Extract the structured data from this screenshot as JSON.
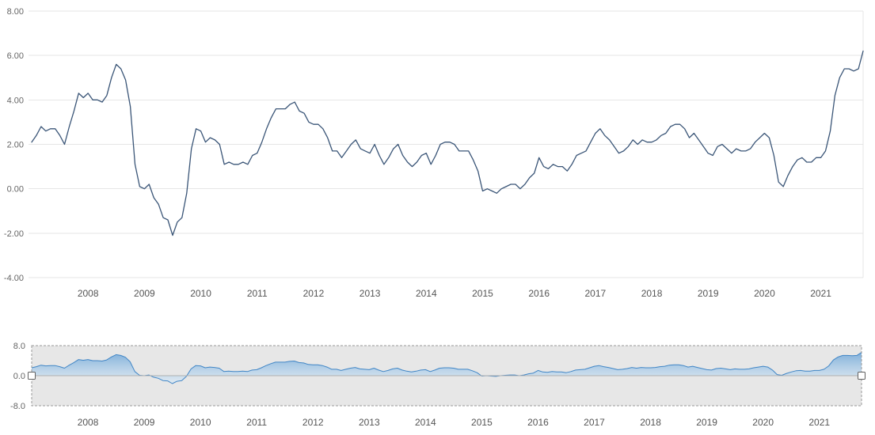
{
  "chart_data": {
    "type": "line",
    "title": "",
    "start_year": 2007,
    "frequency": "monthly",
    "x_tick_labels": [
      "2008",
      "2009",
      "2010",
      "2011",
      "2012",
      "2013",
      "2014",
      "2015",
      "2016",
      "2017",
      "2018",
      "2019",
      "2020",
      "2021"
    ],
    "main_y_ticks": [
      "8.00",
      "6.00",
      "4.00",
      "2.00",
      "0.00",
      "-2.00",
      "-4.00"
    ],
    "main_ylim": [
      -4,
      8
    ],
    "navigator_y_ticks": [
      "8.0",
      "0.0",
      "-8.0"
    ],
    "navigator_ylim": [
      -8,
      8
    ],
    "grid": true,
    "legend": "none",
    "series": [
      {
        "name": "value",
        "values": [
          2.1,
          2.4,
          2.8,
          2.6,
          2.7,
          2.7,
          2.4,
          2.0,
          2.8,
          3.5,
          4.3,
          4.1,
          4.3,
          4.0,
          4.0,
          3.9,
          4.2,
          5.0,
          5.6,
          5.4,
          4.9,
          3.7,
          1.1,
          0.1,
          0.0,
          0.2,
          -0.4,
          -0.7,
          -1.3,
          -1.4,
          -2.1,
          -1.5,
          -1.3,
          -0.2,
          1.8,
          2.7,
          2.6,
          2.1,
          2.3,
          2.2,
          2.0,
          1.1,
          1.2,
          1.1,
          1.1,
          1.2,
          1.1,
          1.5,
          1.6,
          2.1,
          2.7,
          3.2,
          3.6,
          3.6,
          3.6,
          3.8,
          3.9,
          3.5,
          3.4,
          3.0,
          2.9,
          2.9,
          2.7,
          2.3,
          1.7,
          1.7,
          1.4,
          1.7,
          2.0,
          2.2,
          1.8,
          1.7,
          1.6,
          2.0,
          1.5,
          1.1,
          1.4,
          1.8,
          2.0,
          1.5,
          1.2,
          1.0,
          1.2,
          1.5,
          1.6,
          1.1,
          1.5,
          2.0,
          2.1,
          2.1,
          2.0,
          1.7,
          1.7,
          1.7,
          1.3,
          0.8,
          -0.1,
          0.0,
          -0.1,
          -0.2,
          0.0,
          0.1,
          0.2,
          0.2,
          0.0,
          0.2,
          0.5,
          0.7,
          1.4,
          1.0,
          0.9,
          1.1,
          1.0,
          1.0,
          0.8,
          1.1,
          1.5,
          1.6,
          1.7,
          2.1,
          2.5,
          2.7,
          2.4,
          2.2,
          1.9,
          1.6,
          1.7,
          1.9,
          2.2,
          2.0,
          2.2,
          2.1,
          2.1,
          2.2,
          2.4,
          2.5,
          2.8,
          2.9,
          2.9,
          2.7,
          2.3,
          2.5,
          2.2,
          1.9,
          1.6,
          1.5,
          1.9,
          2.0,
          1.8,
          1.6,
          1.8,
          1.7,
          1.7,
          1.8,
          2.1,
          2.3,
          2.5,
          2.3,
          1.5,
          0.3,
          0.1,
          0.6,
          1.0,
          1.3,
          1.4,
          1.2,
          1.2,
          1.4,
          1.4,
          1.7,
          2.6,
          4.2,
          5.0,
          5.4,
          5.4,
          5.3,
          5.4,
          6.2
        ]
      }
    ],
    "colors": {
      "main_line": "#3a5577",
      "grid": "#e6e6e6",
      "axis_border": "#e6e6e6",
      "y_axis_label": "#666666",
      "x_axis_label": "#555555",
      "nav_line": "#4186c6",
      "nav_fill_top": "#74a9d8",
      "nav_fill_bottom": "#dcebf7",
      "nav_bg": "#e7e7e7",
      "nav_border": "#999999",
      "nav_baseline": "#b0b0b0",
      "handle_fill": "#ffffff",
      "handle_stroke": "#616161"
    }
  }
}
